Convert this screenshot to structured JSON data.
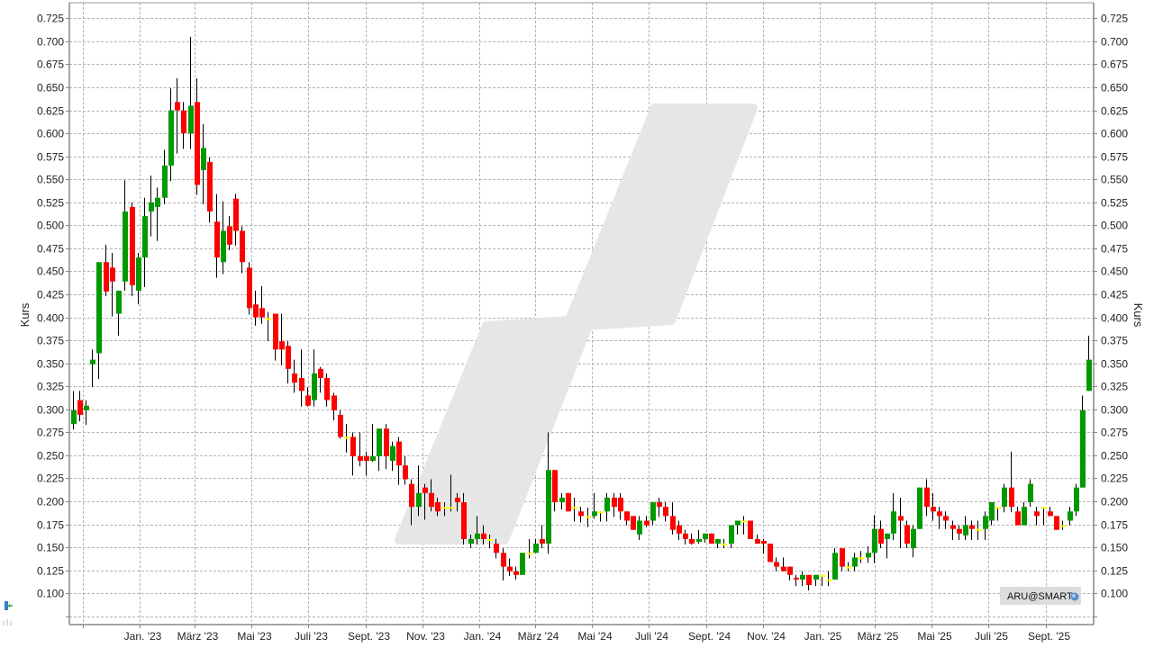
{
  "chart_data": {
    "type": "candlestick",
    "ylabel": "Kurs",
    "ylabel_right": "Kurs",
    "ylim": [
      0.066,
      0.742
    ],
    "grid": true,
    "interval": "weekly",
    "y_ticks": [
      0.075,
      0.1,
      0.125,
      0.15,
      0.175,
      0.2,
      0.225,
      0.25,
      0.275,
      0.3,
      0.325,
      0.35,
      0.375,
      0.4,
      0.425,
      0.45,
      0.475,
      0.5,
      0.525,
      0.55,
      0.575,
      0.6,
      0.625,
      0.65,
      0.675,
      0.7,
      0.725
    ],
    "y_tick_labels": [
      "",
      "0.100",
      "0.125",
      "0.150",
      "0.175",
      "0.200",
      "0.225",
      "0.250",
      "0.275",
      "0.300",
      "0.325",
      "0.350",
      "0.375",
      "0.400",
      "0.425",
      "0.450",
      "0.475",
      "0.500",
      "0.525",
      "0.550",
      "0.575",
      "0.600",
      "0.625",
      "0.650",
      "0.675",
      "0.700",
      "0.725"
    ],
    "x_ticks": [
      {
        "date": "2022-11-01",
        "label": ""
      },
      {
        "date": "2023-01-01",
        "label": "Jan. '23"
      },
      {
        "date": "2023-03-01",
        "label": "März '23"
      },
      {
        "date": "2023-05-01",
        "label": "Mai '23"
      },
      {
        "date": "2023-07-01",
        "label": "Juli '23"
      },
      {
        "date": "2023-09-01",
        "label": "Sept. '23"
      },
      {
        "date": "2023-11-01",
        "label": "Nov. '23"
      },
      {
        "date": "2024-01-01",
        "label": "Jan. '24"
      },
      {
        "date": "2024-03-01",
        "label": "März '24"
      },
      {
        "date": "2024-05-01",
        "label": "Mai '24"
      },
      {
        "date": "2024-07-01",
        "label": "Juli '24"
      },
      {
        "date": "2024-09-01",
        "label": "Sept. '24"
      },
      {
        "date": "2024-11-01",
        "label": "Nov. '24"
      },
      {
        "date": "2025-01-01",
        "label": "Jan. '25"
      },
      {
        "date": "2025-03-01",
        "label": "März '25"
      },
      {
        "date": "2025-05-01",
        "label": "Mai '25"
      },
      {
        "date": "2025-07-01",
        "label": "Juli '25"
      },
      {
        "date": "2025-09-01",
        "label": "Sept. '25"
      }
    ],
    "colors": {
      "up": "#009900",
      "down": "#ff0000",
      "unchanged": "#ffff00",
      "wick": "#000000",
      "grid": "#b4b4b4"
    },
    "candle_fields": [
      "date",
      "open",
      "high",
      "low",
      "close"
    ],
    "candles": [
      [
        "2022-10-17",
        0.284,
        0.32,
        0.278,
        0.299
      ],
      [
        "2022-10-24",
        0.31,
        0.32,
        0.287,
        0.294
      ],
      [
        "2022-10-31",
        0.299,
        0.31,
        0.283,
        0.304
      ],
      [
        "2022-11-07",
        0.349,
        0.365,
        0.324,
        0.354
      ],
      [
        "2022-11-14",
        0.361,
        0.46,
        0.333,
        0.46
      ],
      [
        "2022-11-21",
        0.46,
        0.479,
        0.423,
        0.428
      ],
      [
        "2022-11-28",
        0.454,
        0.47,
        0.401,
        0.439
      ],
      [
        "2022-12-05",
        0.404,
        0.429,
        0.38,
        0.429
      ],
      [
        "2022-12-12",
        0.439,
        0.549,
        0.429,
        0.515
      ],
      [
        "2022-12-19",
        0.52,
        0.525,
        0.423,
        0.435
      ],
      [
        "2022-12-26",
        0.429,
        0.47,
        0.414,
        0.465
      ],
      [
        "2023-01-02",
        0.465,
        0.53,
        0.433,
        0.51
      ],
      [
        "2023-01-09",
        0.515,
        0.554,
        0.488,
        0.525
      ],
      [
        "2023-01-16",
        0.52,
        0.541,
        0.483,
        0.53
      ],
      [
        "2023-01-23",
        0.53,
        0.582,
        0.523,
        0.565
      ],
      [
        "2023-01-30",
        0.565,
        0.649,
        0.548,
        0.625
      ],
      [
        "2023-02-06",
        0.634,
        0.66,
        0.578,
        0.625
      ],
      [
        "2023-02-13",
        0.625,
        0.634,
        0.583,
        0.6
      ],
      [
        "2023-02-20",
        0.6,
        0.705,
        0.583,
        0.63
      ],
      [
        "2023-02-27",
        0.634,
        0.66,
        0.533,
        0.544
      ],
      [
        "2023-03-06",
        0.56,
        0.61,
        0.523,
        0.584
      ],
      [
        "2023-03-13",
        0.569,
        0.574,
        0.503,
        0.515
      ],
      [
        "2023-03-20",
        0.504,
        0.534,
        0.443,
        0.465
      ],
      [
        "2023-03-27",
        0.46,
        0.526,
        0.447,
        0.494
      ],
      [
        "2023-04-03",
        0.499,
        0.51,
        0.473,
        0.479
      ],
      [
        "2023-04-10",
        0.529,
        0.534,
        0.478,
        0.494
      ],
      [
        "2023-04-17",
        0.494,
        0.499,
        0.448,
        0.46
      ],
      [
        "2023-04-24",
        0.454,
        0.46,
        0.403,
        0.41
      ],
      [
        "2023-05-01",
        0.414,
        0.429,
        0.391,
        0.4
      ],
      [
        "2023-05-08",
        0.41,
        0.434,
        0.393,
        0.4
      ],
      [
        "2023-05-15",
        0.398,
        0.406,
        0.374,
        0.398
      ],
      [
        "2023-05-22",
        0.404,
        0.404,
        0.353,
        0.365
      ],
      [
        "2023-05-29",
        0.374,
        0.404,
        0.348,
        0.365
      ],
      [
        "2023-06-05",
        0.369,
        0.374,
        0.328,
        0.344
      ],
      [
        "2023-06-12",
        0.339,
        0.354,
        0.318,
        0.329
      ],
      [
        "2023-06-19",
        0.334,
        0.365,
        0.303,
        0.32
      ],
      [
        "2023-06-26",
        0.315,
        0.324,
        0.303,
        0.304
      ],
      [
        "2023-07-03",
        0.31,
        0.365,
        0.303,
        0.339
      ],
      [
        "2023-07-10",
        0.344,
        0.346,
        0.318,
        0.334
      ],
      [
        "2023-07-17",
        0.334,
        0.339,
        0.303,
        0.31
      ],
      [
        "2023-07-24",
        0.315,
        0.318,
        0.288,
        0.299
      ],
      [
        "2023-07-31",
        0.294,
        0.299,
        0.268,
        0.27
      ],
      [
        "2023-08-07",
        0.269,
        0.284,
        0.253,
        0.269
      ],
      [
        "2023-08-14",
        0.27,
        0.275,
        0.228,
        0.249
      ],
      [
        "2023-08-21",
        0.249,
        0.275,
        0.238,
        0.244
      ],
      [
        "2023-08-28",
        0.249,
        0.254,
        0.228,
        0.244
      ],
      [
        "2023-09-04",
        0.244,
        0.284,
        0.243,
        0.249
      ],
      [
        "2023-09-11",
        0.249,
        0.279,
        0.233,
        0.279
      ],
      [
        "2023-09-18",
        0.279,
        0.284,
        0.235,
        0.249
      ],
      [
        "2023-09-25",
        0.244,
        0.265,
        0.233,
        0.26
      ],
      [
        "2023-10-02",
        0.265,
        0.27,
        0.218,
        0.239
      ],
      [
        "2023-10-09",
        0.239,
        0.249,
        0.218,
        0.224
      ],
      [
        "2023-10-16",
        0.219,
        0.224,
        0.174,
        0.194
      ],
      [
        "2023-10-23",
        0.194,
        0.239,
        0.184,
        0.209
      ],
      [
        "2023-10-30",
        0.215,
        0.219,
        0.18,
        0.209
      ],
      [
        "2023-11-06",
        0.209,
        0.224,
        0.189,
        0.194
      ],
      [
        "2023-11-13",
        0.199,
        0.204,
        0.184,
        0.189
      ],
      [
        "2023-11-20",
        0.193,
        0.199,
        0.184,
        0.193
      ],
      [
        "2023-11-27",
        0.193,
        0.229,
        0.189,
        0.193
      ],
      [
        "2023-12-04",
        0.204,
        0.209,
        0.189,
        0.199
      ],
      [
        "2023-12-11",
        0.199,
        0.209,
        0.153,
        0.159
      ],
      [
        "2023-12-18",
        0.154,
        0.164,
        0.149,
        0.159
      ],
      [
        "2023-12-25",
        0.159,
        0.184,
        0.153,
        0.165
      ],
      [
        "2024-01-01",
        0.165,
        0.174,
        0.153,
        0.159
      ],
      [
        "2024-01-08",
        0.158,
        0.164,
        0.149,
        0.158
      ],
      [
        "2024-01-15",
        0.154,
        0.159,
        0.138,
        0.144
      ],
      [
        "2024-01-22",
        0.144,
        0.149,
        0.114,
        0.129
      ],
      [
        "2024-01-29",
        0.129,
        0.138,
        0.119,
        0.124
      ],
      [
        "2024-02-05",
        0.124,
        0.129,
        0.115,
        0.12
      ],
      [
        "2024-02-12",
        0.12,
        0.144,
        0.12,
        0.144
      ],
      [
        "2024-02-19",
        0.143,
        0.159,
        0.138,
        0.143
      ],
      [
        "2024-02-26",
        0.144,
        0.159,
        0.144,
        0.154
      ],
      [
        "2024-03-04",
        0.159,
        0.174,
        0.149,
        0.154
      ],
      [
        "2024-03-11",
        0.154,
        0.275,
        0.143,
        0.234
      ],
      [
        "2024-03-18",
        0.234,
        0.234,
        0.189,
        0.199
      ],
      [
        "2024-03-25",
        0.199,
        0.209,
        0.191,
        0.204
      ],
      [
        "2024-04-01",
        0.209,
        0.209,
        0.189,
        0.189
      ],
      [
        "2024-04-08",
        0.193,
        0.204,
        0.178,
        0.193
      ],
      [
        "2024-04-15",
        0.189,
        0.194,
        0.177,
        0.184
      ],
      [
        "2024-04-22",
        0.183,
        0.193,
        0.172,
        0.183
      ],
      [
        "2024-04-29",
        0.184,
        0.209,
        0.181,
        0.189
      ],
      [
        "2024-05-06",
        0.188,
        0.189,
        0.178,
        0.188
      ],
      [
        "2024-05-13",
        0.189,
        0.209,
        0.178,
        0.204
      ],
      [
        "2024-05-20",
        0.204,
        0.209,
        0.183,
        0.194
      ],
      [
        "2024-05-27",
        0.204,
        0.209,
        0.18,
        0.189
      ],
      [
        "2024-06-03",
        0.189,
        0.189,
        0.174,
        0.179
      ],
      [
        "2024-06-10",
        0.184,
        0.184,
        0.169,
        0.169
      ],
      [
        "2024-06-17",
        0.164,
        0.184,
        0.158,
        0.179
      ],
      [
        "2024-06-24",
        0.179,
        0.184,
        0.172,
        0.174
      ],
      [
        "2024-07-01",
        0.179,
        0.199,
        0.174,
        0.199
      ],
      [
        "2024-07-08",
        0.199,
        0.204,
        0.183,
        0.194
      ],
      [
        "2024-07-15",
        0.194,
        0.199,
        0.178,
        0.184
      ],
      [
        "2024-07-22",
        0.184,
        0.199,
        0.164,
        0.169
      ],
      [
        "2024-07-29",
        0.174,
        0.179,
        0.158,
        0.165
      ],
      [
        "2024-08-05",
        0.165,
        0.169,
        0.153,
        0.159
      ],
      [
        "2024-08-12",
        0.159,
        0.165,
        0.153,
        0.154
      ],
      [
        "2024-08-19",
        0.156,
        0.169,
        0.154,
        0.159
      ],
      [
        "2024-08-26",
        0.159,
        0.165,
        0.155,
        0.165
      ],
      [
        "2024-09-02",
        0.165,
        0.165,
        0.154,
        0.154
      ],
      [
        "2024-09-09",
        0.154,
        0.159,
        0.149,
        0.159
      ],
      [
        "2024-09-16",
        0.153,
        0.159,
        0.149,
        0.153
      ],
      [
        "2024-09-23",
        0.154,
        0.174,
        0.149,
        0.174
      ],
      [
        "2024-09-30",
        0.174,
        0.179,
        0.164,
        0.179
      ],
      [
        "2024-10-07",
        0.178,
        0.184,
        0.164,
        0.178
      ],
      [
        "2024-10-14",
        0.179,
        0.179,
        0.159,
        0.159
      ],
      [
        "2024-10-21",
        0.159,
        0.164,
        0.154,
        0.154
      ],
      [
        "2024-10-28",
        0.157,
        0.159,
        0.143,
        0.154
      ],
      [
        "2024-11-04",
        0.154,
        0.154,
        0.134,
        0.134
      ],
      [
        "2024-11-11",
        0.134,
        0.139,
        0.124,
        0.129
      ],
      [
        "2024-11-18",
        0.129,
        0.139,
        0.124,
        0.124
      ],
      [
        "2024-11-25",
        0.129,
        0.129,
        0.114,
        0.12
      ],
      [
        "2024-12-02",
        0.117,
        0.12,
        0.108,
        0.115
      ],
      [
        "2024-12-09",
        0.115,
        0.124,
        0.108,
        0.12
      ],
      [
        "2024-12-16",
        0.12,
        0.12,
        0.103,
        0.109
      ],
      [
        "2024-12-23",
        0.115,
        0.12,
        0.108,
        0.12
      ],
      [
        "2024-12-30",
        0.119,
        0.12,
        0.108,
        0.119
      ],
      [
        "2025-01-06",
        0.114,
        0.124,
        0.108,
        0.114
      ],
      [
        "2025-01-13",
        0.115,
        0.149,
        0.115,
        0.144
      ],
      [
        "2025-01-20",
        0.149,
        0.149,
        0.124,
        0.129
      ],
      [
        "2025-01-27",
        0.128,
        0.134,
        0.124,
        0.128
      ],
      [
        "2025-02-03",
        0.129,
        0.144,
        0.124,
        0.139
      ],
      [
        "2025-02-10",
        0.138,
        0.146,
        0.133,
        0.138
      ],
      [
        "2025-02-17",
        0.139,
        0.151,
        0.133,
        0.144
      ],
      [
        "2025-02-24",
        0.144,
        0.185,
        0.133,
        0.17
      ],
      [
        "2025-03-03",
        0.17,
        0.179,
        0.149,
        0.154
      ],
      [
        "2025-03-10",
        0.159,
        0.165,
        0.138,
        0.165
      ],
      [
        "2025-03-17",
        0.165,
        0.209,
        0.158,
        0.189
      ],
      [
        "2025-03-24",
        0.184,
        0.204,
        0.149,
        0.179
      ],
      [
        "2025-03-31",
        0.174,
        0.179,
        0.149,
        0.154
      ],
      [
        "2025-04-07",
        0.149,
        0.174,
        0.139,
        0.17
      ],
      [
        "2025-04-14",
        0.17,
        0.215,
        0.17,
        0.215
      ],
      [
        "2025-04-21",
        0.215,
        0.224,
        0.184,
        0.194
      ],
      [
        "2025-04-28",
        0.194,
        0.209,
        0.179,
        0.189
      ],
      [
        "2025-05-05",
        0.189,
        0.194,
        0.17,
        0.184
      ],
      [
        "2025-05-12",
        0.184,
        0.189,
        0.17,
        0.179
      ],
      [
        "2025-05-19",
        0.174,
        0.179,
        0.158,
        0.17
      ],
      [
        "2025-05-26",
        0.17,
        0.174,
        0.158,
        0.165
      ],
      [
        "2025-06-02",
        0.163,
        0.184,
        0.158,
        0.174
      ],
      [
        "2025-06-09",
        0.174,
        0.179,
        0.158,
        0.17
      ],
      [
        "2025-06-16",
        0.169,
        0.179,
        0.158,
        0.169
      ],
      [
        "2025-06-23",
        0.17,
        0.189,
        0.158,
        0.184
      ],
      [
        "2025-06-30",
        0.179,
        0.199,
        0.174,
        0.199
      ],
      [
        "2025-07-07",
        0.193,
        0.194,
        0.179,
        0.193
      ],
      [
        "2025-07-14",
        0.194,
        0.219,
        0.188,
        0.215
      ],
      [
        "2025-07-21",
        0.215,
        0.254,
        0.188,
        0.194
      ],
      [
        "2025-07-28",
        0.189,
        0.194,
        0.174,
        0.174
      ],
      [
        "2025-08-04",
        0.174,
        0.199,
        0.174,
        0.194
      ],
      [
        "2025-08-11",
        0.199,
        0.224,
        0.194,
        0.219
      ],
      [
        "2025-08-18",
        0.189,
        0.194,
        0.174,
        0.184
      ],
      [
        "2025-08-25",
        0.193,
        0.194,
        0.174,
        0.193
      ],
      [
        "2025-09-01",
        0.189,
        0.194,
        0.184,
        0.184
      ],
      [
        "2025-09-08",
        0.184,
        0.184,
        0.169,
        0.169
      ],
      [
        "2025-09-15",
        0.173,
        0.179,
        0.169,
        0.173
      ],
      [
        "2025-09-22",
        0.179,
        0.194,
        0.174,
        0.189
      ],
      [
        "2025-09-29",
        0.189,
        0.219,
        0.184,
        0.215
      ],
      [
        "2025-10-06",
        0.215,
        0.315,
        0.215,
        0.299
      ],
      [
        "2025-10-13",
        0.32,
        0.38,
        0.32,
        0.354
      ]
    ]
  },
  "badge": {
    "label": "ARU@SMART",
    "icon": "globe-icon"
  },
  "toolbar": {
    "icon": "chart-tool-icon"
  }
}
